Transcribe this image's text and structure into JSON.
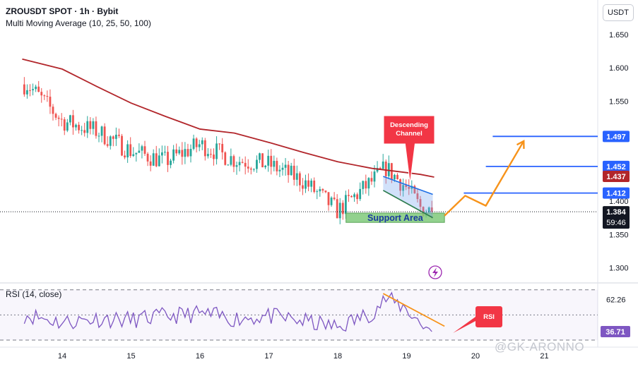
{
  "header": {
    "title": "ZROUSDT SPOT · 1h · Bybit",
    "indicator": "Multi Moving Average (10, 25, 50, 100)"
  },
  "rsi_header": "RSI (14, close)",
  "currency_button": "USDT",
  "watermark": "@GK-ARONNO",
  "colors": {
    "up": "#26a69a",
    "down": "#ef5350",
    "ma": "#b2262b",
    "level_line": "#2962ff",
    "projection": "#f7931a",
    "channel": "#1e6fe6",
    "support_fill": "#7fc97a",
    "support_text": "#1a3a9e",
    "callout": "#f23645",
    "rsi_line": "#7e57c2",
    "rsi_trend": "#f7931a"
  },
  "chart_data": [
    {
      "type": "candlestick",
      "pair": "ZROUSDT",
      "timeframe": "1h",
      "ylim": [
        1.27,
        1.705
      ],
      "y_ticks": [
        "1.650",
        "1.600",
        "1.550",
        "1.500",
        "1.450",
        "1.400",
        "1.350",
        "1.300"
      ],
      "x_ticks": [
        "14",
        "15",
        "16",
        "17",
        "18",
        "19",
        "20",
        "21"
      ],
      "x_tick_days": [
        14,
        15,
        16,
        17,
        18,
        19,
        20,
        21
      ],
      "xlim_days": [
        13.42,
        21.3
      ],
      "series": {
        "days": [
          13.5,
          14.0,
          14.5,
          15.0,
          15.5,
          16.0,
          16.5,
          17.0,
          17.5,
          18.0,
          18.5,
          18.7,
          19.0,
          19.2,
          19.4
        ],
        "anchor_closes": [
          1.575,
          1.52,
          1.505,
          1.475,
          1.46,
          1.485,
          1.462,
          1.455,
          1.43,
          1.385,
          1.43,
          1.45,
          1.42,
          1.39,
          1.384
        ]
      },
      "moving_average": {
        "days": [
          13.42,
          14.0,
          14.5,
          15.0,
          15.5,
          16.0,
          16.5,
          17.0,
          17.5,
          18.0,
          18.5,
          18.9,
          19.2,
          19.4
        ],
        "values": [
          1.613,
          1.598,
          1.572,
          1.547,
          1.527,
          1.508,
          1.502,
          1.488,
          1.473,
          1.459,
          1.449,
          1.444,
          1.44,
          1.436
        ]
      },
      "price_labels": [
        {
          "text": "1.497",
          "value": 1.497,
          "kind": "level"
        },
        {
          "text": "1.452",
          "value": 1.452,
          "kind": "level"
        },
        {
          "text": "1.437",
          "value": 1.437,
          "kind": "ma"
        },
        {
          "text": "1.412",
          "value": 1.412,
          "kind": "level"
        },
        {
          "text": "1.384",
          "value": 1.384,
          "kind": "last"
        }
      ],
      "countdown": "59:46",
      "levels": [
        {
          "value": 1.497,
          "from_day": 20.25
        },
        {
          "value": 1.452,
          "from_day": 20.15
        },
        {
          "value": 1.412,
          "from_day": 19.83
        }
      ],
      "last_price": 1.384,
      "descending_channel": {
        "upper": [
          [
            18.66,
            1.437
          ],
          [
            19.38,
            1.41
          ]
        ],
        "lower": [
          [
            18.66,
            1.416
          ],
          [
            19.38,
            1.375
          ]
        ]
      },
      "projection_path": {
        "days": [
          19.55,
          19.85,
          20.15,
          20.7
        ],
        "values": [
          1.378,
          1.408,
          1.393,
          1.49
        ]
      },
      "support_area": {
        "label": "Support Area",
        "from_day": 18.12,
        "to_day": 19.55,
        "low": 1.368,
        "high": 1.382
      },
      "annotations": [
        {
          "text": "Descending Channel",
          "pointer_day": 19.05,
          "pointer_value": 1.427
        }
      ]
    },
    {
      "type": "line",
      "name": "RSI (14, close)",
      "ylim": [
        18,
        80
      ],
      "y_ticks": [
        "62.26",
        "36.71"
      ],
      "guides": [
        70,
        50,
        30
      ],
      "last_value": 36.71,
      "trendline": [
        [
          18.66,
          67
        ],
        [
          19.55,
          41
        ]
      ],
      "anchors": {
        "days": [
          13.5,
          14.0,
          14.5,
          15.0,
          15.5,
          16.0,
          16.5,
          17.0,
          17.5,
          18.0,
          18.5,
          18.7,
          19.0,
          19.2,
          19.4
        ],
        "values": [
          50,
          44,
          47,
          46,
          49,
          51,
          47,
          49,
          45,
          40,
          52,
          63,
          55,
          43,
          37
        ]
      },
      "annotations": [
        {
          "text": "RSI",
          "pointer_day": 19.55,
          "pointer_value": 36.71
        }
      ]
    }
  ]
}
